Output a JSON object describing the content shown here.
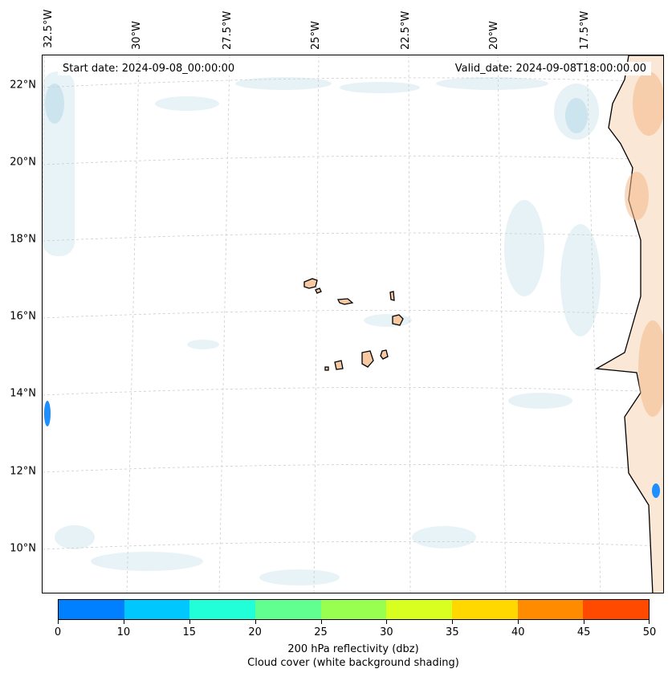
{
  "header": {
    "start_date": "Start date: 2024-09-08_00:00:00",
    "valid_date": "Valid_date: 2024-09-08T18:00:00.00"
  },
  "axes": {
    "longitude_labels": [
      "32.5°W",
      "30°W",
      "27.5°W",
      "25°W",
      "22.5°W",
      "20°W",
      "17.5°W"
    ],
    "latitude_labels": [
      "22°N",
      "20°N",
      "18°N",
      "16°N",
      "14°N",
      "12°N",
      "10°N"
    ]
  },
  "colorbar": {
    "ticks": [
      "0",
      "10",
      "15",
      "20",
      "25",
      "30",
      "35",
      "40",
      "45",
      "50"
    ],
    "colors": [
      "#0080ff",
      "#00c8ff",
      "#20ffd8",
      "#60ff90",
      "#98ff50",
      "#d8ff20",
      "#ffd800",
      "#ff8c00",
      "#ff4a00"
    ],
    "label_line1": "200 hPa reflectivity (dbz)",
    "label_line2": "Cloud cover (white background shading)"
  },
  "map_colors": {
    "cloud": "#cfe6ee",
    "land_warm": "#f7c9a3",
    "reflectivity": "#1e8fff",
    "coast": "#000000",
    "grid": "#c8c8c8"
  }
}
